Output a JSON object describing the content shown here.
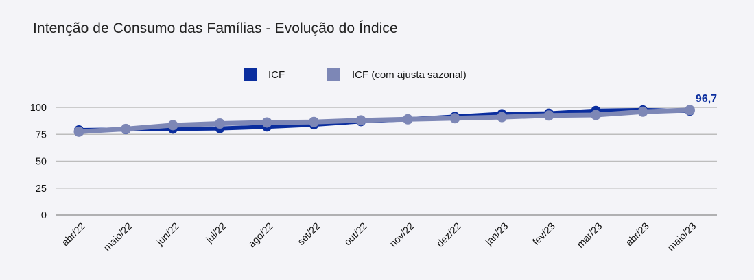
{
  "chart_data": {
    "type": "line",
    "title": "Intenção de Consumo das Famílias - Evolução do Índice",
    "categories": [
      "abr/22",
      "maio/22",
      "jun/22",
      "jul/22",
      "ago/22",
      "set/22",
      "out/22",
      "nov/22",
      "dez/22",
      "jan/23",
      "fev/23",
      "mar/23",
      "abr/23",
      "maio/23"
    ],
    "series": [
      {
        "name": "ICF",
        "color": "#0a2d9e",
        "values": [
          79,
          79.5,
          80,
          80.5,
          82,
          84,
          87,
          89,
          91.5,
          94,
          94.5,
          97,
          97.5,
          96.7
        ]
      },
      {
        "name": "ICF (com ajusta sazonal)",
        "color": "#7d87b6",
        "values": [
          77.5,
          80,
          83.5,
          85,
          86,
          86.5,
          88,
          89,
          90,
          91,
          92.5,
          93,
          96,
          97.5
        ]
      }
    ],
    "ylim": [
      0,
      100
    ],
    "yticks": [
      0,
      25,
      50,
      75,
      100
    ],
    "grid": true,
    "legend_position": "top-center",
    "data_labels": [
      {
        "series": "ICF",
        "category": "maio/23",
        "text": "96,7",
        "color": "#0a2d9e"
      }
    ]
  }
}
